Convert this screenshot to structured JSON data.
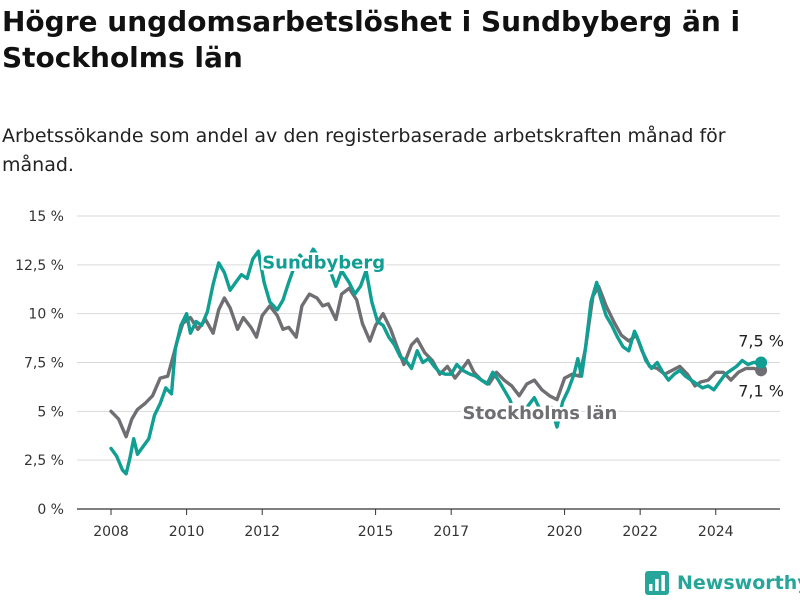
{
  "header": {
    "title": "Högre ungdomsarbetslöshet i Sundbyberg än i Stockholms län",
    "subtitle": "Arbetssökande som andel av den registerbaserade arbetskraften månad för månad."
  },
  "brand": {
    "name": "Newsworthy",
    "icon": "bar-chart-logo-icon",
    "color": "#26a69a"
  },
  "chart_data": {
    "type": "line",
    "y_ticks": [
      "0 %",
      "2,5 %",
      "5 %",
      "7,5 %",
      "10 %",
      "12,5 %",
      "15 %"
    ],
    "ylim": [
      0,
      15
    ],
    "x_ticks": [
      "2008",
      "2010",
      "2012",
      "2015",
      "2017",
      "2020",
      "2022",
      "2024"
    ],
    "x_tick_values": [
      2008,
      2010,
      2012,
      2015,
      2017,
      2020,
      2022,
      2024
    ],
    "xlim": [
      2007.1,
      2025.7
    ],
    "grid": true,
    "series": [
      {
        "name": "Stockholms län",
        "color": "#6f6f73",
        "end_label": "7,1 %",
        "points": [
          [
            2008.0,
            5.0
          ],
          [
            2008.2,
            4.6
          ],
          [
            2008.4,
            3.7
          ],
          [
            2008.55,
            4.6
          ],
          [
            2008.7,
            5.1
          ],
          [
            2008.9,
            5.4
          ],
          [
            2009.1,
            5.8
          ],
          [
            2009.3,
            6.7
          ],
          [
            2009.5,
            6.8
          ],
          [
            2009.6,
            7.5
          ],
          [
            2009.75,
            8.6
          ],
          [
            2009.9,
            9.5
          ],
          [
            2010.1,
            9.8
          ],
          [
            2010.3,
            9.2
          ],
          [
            2010.5,
            9.7
          ],
          [
            2010.7,
            9.0
          ],
          [
            2010.85,
            10.2
          ],
          [
            2011.0,
            10.8
          ],
          [
            2011.15,
            10.3
          ],
          [
            2011.35,
            9.2
          ],
          [
            2011.5,
            9.8
          ],
          [
            2011.7,
            9.3
          ],
          [
            2011.85,
            8.8
          ],
          [
            2012.0,
            9.9
          ],
          [
            2012.2,
            10.4
          ],
          [
            2012.4,
            9.9
          ],
          [
            2012.55,
            9.2
          ],
          [
            2012.7,
            9.3
          ],
          [
            2012.9,
            8.8
          ],
          [
            2013.05,
            10.4
          ],
          [
            2013.25,
            11.0
          ],
          [
            2013.45,
            10.8
          ],
          [
            2013.6,
            10.4
          ],
          [
            2013.75,
            10.5
          ],
          [
            2013.95,
            9.7
          ],
          [
            2014.1,
            11.0
          ],
          [
            2014.3,
            11.3
          ],
          [
            2014.5,
            10.7
          ],
          [
            2014.65,
            9.5
          ],
          [
            2014.85,
            8.6
          ],
          [
            2015.0,
            9.4
          ],
          [
            2015.2,
            10.0
          ],
          [
            2015.4,
            9.2
          ],
          [
            2015.55,
            8.4
          ],
          [
            2015.75,
            7.4
          ],
          [
            2015.95,
            8.4
          ],
          [
            2016.1,
            8.7
          ],
          [
            2016.3,
            8.0
          ],
          [
            2016.5,
            7.6
          ],
          [
            2016.7,
            6.9
          ],
          [
            2016.9,
            7.3
          ],
          [
            2017.1,
            6.7
          ],
          [
            2017.3,
            7.2
          ],
          [
            2017.45,
            7.6
          ],
          [
            2017.6,
            7.0
          ],
          [
            2017.8,
            6.6
          ],
          [
            2018.0,
            6.4
          ],
          [
            2018.2,
            7.0
          ],
          [
            2018.4,
            6.6
          ],
          [
            2018.6,
            6.3
          ],
          [
            2018.8,
            5.8
          ],
          [
            2019.0,
            6.4
          ],
          [
            2019.2,
            6.6
          ],
          [
            2019.4,
            6.1
          ],
          [
            2019.6,
            5.8
          ],
          [
            2019.8,
            5.6
          ],
          [
            2020.0,
            6.7
          ],
          [
            2020.2,
            6.9
          ],
          [
            2020.4,
            6.8
          ],
          [
            2020.55,
            8.2
          ],
          [
            2020.75,
            10.9
          ],
          [
            2020.9,
            11.4
          ],
          [
            2021.1,
            10.4
          ],
          [
            2021.3,
            9.6
          ],
          [
            2021.5,
            8.9
          ],
          [
            2021.7,
            8.6
          ],
          [
            2021.9,
            8.9
          ],
          [
            2022.05,
            8.1
          ],
          [
            2022.25,
            7.3
          ],
          [
            2022.45,
            7.2
          ],
          [
            2022.65,
            6.9
          ],
          [
            2022.85,
            7.1
          ],
          [
            2023.05,
            7.3
          ],
          [
            2023.25,
            6.9
          ],
          [
            2023.45,
            6.3
          ],
          [
            2023.6,
            6.5
          ],
          [
            2023.8,
            6.6
          ],
          [
            2024.0,
            7.0
          ],
          [
            2024.2,
            7.0
          ],
          [
            2024.4,
            6.6
          ],
          [
            2024.6,
            7.0
          ],
          [
            2024.8,
            7.2
          ],
          [
            2025.0,
            7.2
          ],
          [
            2025.2,
            7.1
          ]
        ]
      },
      {
        "name": "Sundbyberg",
        "color": "#119e93",
        "end_label": "7,5 %",
        "points": [
          [
            2008.0,
            3.1
          ],
          [
            2008.15,
            2.7
          ],
          [
            2008.3,
            2.0
          ],
          [
            2008.4,
            1.8
          ],
          [
            2008.5,
            2.6
          ],
          [
            2008.6,
            3.6
          ],
          [
            2008.7,
            2.8
          ],
          [
            2008.85,
            3.2
          ],
          [
            2009.0,
            3.6
          ],
          [
            2009.15,
            4.8
          ],
          [
            2009.3,
            5.4
          ],
          [
            2009.45,
            6.2
          ],
          [
            2009.6,
            5.9
          ],
          [
            2009.7,
            8.2
          ],
          [
            2009.85,
            9.4
          ],
          [
            2010.0,
            10.0
          ],
          [
            2010.1,
            9.0
          ],
          [
            2010.25,
            9.6
          ],
          [
            2010.4,
            9.4
          ],
          [
            2010.55,
            10.1
          ],
          [
            2010.7,
            11.5
          ],
          [
            2010.85,
            12.6
          ],
          [
            2011.0,
            12.1
          ],
          [
            2011.15,
            11.2
          ],
          [
            2011.3,
            11.6
          ],
          [
            2011.45,
            12.0
          ],
          [
            2011.6,
            11.8
          ],
          [
            2011.75,
            12.8
          ],
          [
            2011.9,
            13.2
          ],
          [
            2012.05,
            11.6
          ],
          [
            2012.2,
            10.6
          ],
          [
            2012.4,
            10.2
          ],
          [
            2012.55,
            10.7
          ],
          [
            2012.7,
            11.6
          ],
          [
            2012.85,
            12.4
          ],
          [
            2013.0,
            13.0
          ],
          [
            2013.15,
            12.6
          ],
          [
            2013.35,
            13.3
          ],
          [
            2013.5,
            12.9
          ],
          [
            2013.65,
            12.4
          ],
          [
            2013.8,
            12.2
          ],
          [
            2013.95,
            11.4
          ],
          [
            2014.1,
            12.2
          ],
          [
            2014.3,
            11.6
          ],
          [
            2014.45,
            11.0
          ],
          [
            2014.6,
            11.4
          ],
          [
            2014.75,
            12.2
          ],
          [
            2014.9,
            10.6
          ],
          [
            2015.05,
            9.6
          ],
          [
            2015.2,
            9.4
          ],
          [
            2015.35,
            8.8
          ],
          [
            2015.5,
            8.4
          ],
          [
            2015.65,
            7.8
          ],
          [
            2015.8,
            7.6
          ],
          [
            2015.95,
            7.2
          ],
          [
            2016.1,
            8.1
          ],
          [
            2016.25,
            7.5
          ],
          [
            2016.4,
            7.7
          ],
          [
            2016.55,
            7.3
          ],
          [
            2016.7,
            7.0
          ],
          [
            2016.85,
            6.9
          ],
          [
            2017.0,
            6.9
          ],
          [
            2017.15,
            7.4
          ],
          [
            2017.3,
            7.1
          ],
          [
            2017.5,
            6.9
          ],
          [
            2017.65,
            6.8
          ],
          [
            2017.8,
            6.6
          ],
          [
            2017.95,
            6.4
          ],
          [
            2018.1,
            7.0
          ],
          [
            2018.25,
            6.6
          ],
          [
            2018.4,
            6.1
          ],
          [
            2018.55,
            5.6
          ],
          [
            2018.7,
            4.8
          ],
          [
            2018.85,
            4.6
          ],
          [
            2019.0,
            5.2
          ],
          [
            2019.2,
            5.7
          ],
          [
            2019.35,
            5.1
          ],
          [
            2019.5,
            4.7
          ],
          [
            2019.65,
            5.2
          ],
          [
            2019.8,
            4.2
          ],
          [
            2019.95,
            5.5
          ],
          [
            2020.1,
            6.1
          ],
          [
            2020.25,
            6.9
          ],
          [
            2020.35,
            7.7
          ],
          [
            2020.45,
            6.8
          ],
          [
            2020.55,
            8.2
          ],
          [
            2020.7,
            10.6
          ],
          [
            2020.85,
            11.6
          ],
          [
            2020.95,
            10.8
          ],
          [
            2021.1,
            9.9
          ],
          [
            2021.25,
            9.4
          ],
          [
            2021.4,
            8.8
          ],
          [
            2021.55,
            8.3
          ],
          [
            2021.7,
            8.1
          ],
          [
            2021.85,
            9.1
          ],
          [
            2022.0,
            8.4
          ],
          [
            2022.15,
            7.6
          ],
          [
            2022.3,
            7.2
          ],
          [
            2022.45,
            7.5
          ],
          [
            2022.6,
            7.0
          ],
          [
            2022.75,
            6.6
          ],
          [
            2022.9,
            6.9
          ],
          [
            2023.05,
            7.1
          ],
          [
            2023.2,
            6.8
          ],
          [
            2023.35,
            6.6
          ],
          [
            2023.5,
            6.4
          ],
          [
            2023.65,
            6.2
          ],
          [
            2023.8,
            6.3
          ],
          [
            2023.95,
            6.1
          ],
          [
            2024.1,
            6.5
          ],
          [
            2024.25,
            6.9
          ],
          [
            2024.4,
            7.1
          ],
          [
            2024.55,
            7.3
          ],
          [
            2024.7,
            7.6
          ],
          [
            2024.85,
            7.4
          ],
          [
            2025.0,
            7.5
          ],
          [
            2025.2,
            7.5
          ]
        ]
      }
    ]
  }
}
